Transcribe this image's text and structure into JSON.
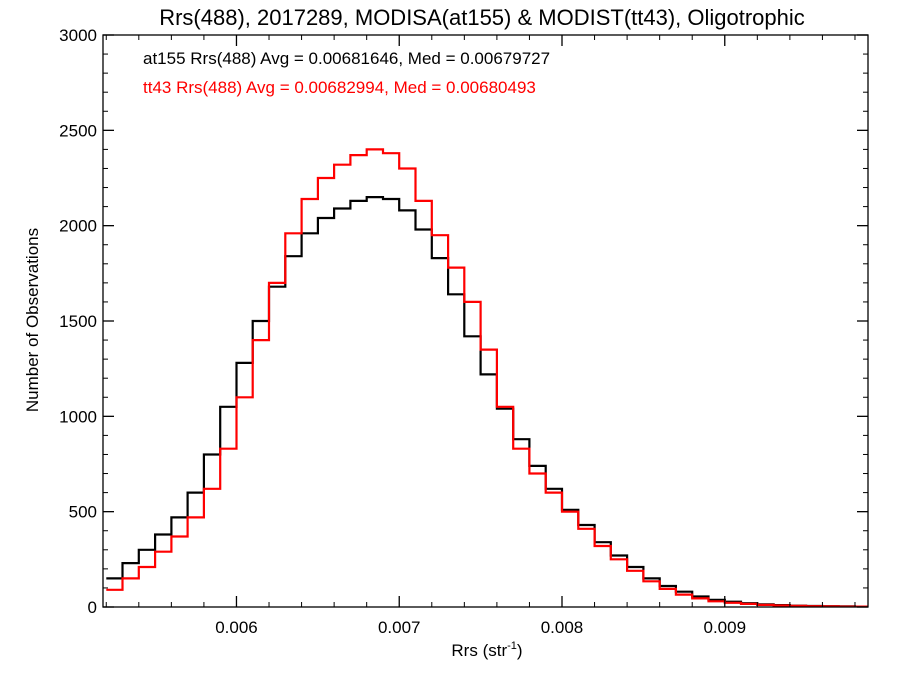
{
  "chart_data": {
    "type": "line",
    "title": "Rrs(488), 2017289, MODISA(at155) & MODIST(tt43), Oligotrophic",
    "xlabel": "Rrs (str",
    "xlabel_sup": "-1",
    "xlabel_close": ")",
    "ylabel": "Number of Observations",
    "xlim": [
      0.00518,
      0.00988
    ],
    "ylim": [
      0,
      3000
    ],
    "x_ticks": [
      0.006,
      0.007,
      0.008,
      0.009
    ],
    "x_tick_labels": [
      "0.006",
      "0.007",
      "0.008",
      "0.009"
    ],
    "y_ticks": [
      0,
      500,
      1000,
      1500,
      2000,
      2500,
      3000
    ],
    "y_tick_labels": [
      "0",
      "500",
      "1000",
      "1500",
      "2000",
      "2500",
      "3000"
    ],
    "grid": false,
    "legend_position": "top-left",
    "series": [
      {
        "name": "at155 Rrs(488) Avg = 0.00681646, Med = 0.00679727",
        "color": "#000000",
        "x": [
          0.0052,
          0.0053,
          0.0054,
          0.0055,
          0.0056,
          0.0057,
          0.0058,
          0.0059,
          0.006,
          0.0061,
          0.0062,
          0.0063,
          0.0064,
          0.0065,
          0.0066,
          0.0067,
          0.0068,
          0.0069,
          0.007,
          0.0071,
          0.0072,
          0.0073,
          0.0074,
          0.0075,
          0.0076,
          0.0077,
          0.0078,
          0.0079,
          0.008,
          0.0081,
          0.0082,
          0.0083,
          0.0084,
          0.0085,
          0.0086,
          0.0087,
          0.0088,
          0.0089,
          0.009,
          0.0091,
          0.0092,
          0.0093,
          0.0094,
          0.0095,
          0.0096,
          0.0097,
          0.0098,
          0.00988
        ],
        "y": [
          150,
          230,
          300,
          380,
          470,
          600,
          800,
          1050,
          1280,
          1500,
          1680,
          1840,
          1960,
          2040,
          2090,
          2130,
          2150,
          2140,
          2080,
          1980,
          1830,
          1640,
          1420,
          1220,
          1040,
          880,
          740,
          620,
          510,
          430,
          340,
          270,
          210,
          150,
          110,
          80,
          55,
          38,
          28,
          20,
          14,
          10,
          7,
          5,
          4,
          3,
          2,
          2
        ]
      },
      {
        "name": "tt43 Rrs(488) Avg = 0.00682994, Med = 0.00680493",
        "color": "#ff0000",
        "x": [
          0.0052,
          0.0053,
          0.0054,
          0.0055,
          0.0056,
          0.0057,
          0.0058,
          0.0059,
          0.006,
          0.0061,
          0.0062,
          0.0063,
          0.0064,
          0.0065,
          0.0066,
          0.0067,
          0.0068,
          0.0069,
          0.007,
          0.0071,
          0.0072,
          0.0073,
          0.0074,
          0.0075,
          0.0076,
          0.0077,
          0.0078,
          0.0079,
          0.008,
          0.0081,
          0.0082,
          0.0083,
          0.0084,
          0.0085,
          0.0086,
          0.0087,
          0.0088,
          0.0089,
          0.009,
          0.0091,
          0.0092,
          0.0093,
          0.0094,
          0.0095,
          0.0096,
          0.0097,
          0.0098,
          0.00988
        ],
        "y": [
          90,
          150,
          210,
          290,
          370,
          470,
          620,
          830,
          1100,
          1400,
          1700,
          1960,
          2140,
          2250,
          2320,
          2370,
          2400,
          2380,
          2300,
          2130,
          1950,
          1780,
          1600,
          1350,
          1050,
          830,
          700,
          600,
          500,
          410,
          320,
          250,
          190,
          135,
          95,
          65,
          45,
          30,
          22,
          16,
          11,
          8,
          6,
          4,
          3,
          2,
          2,
          2
        ]
      }
    ]
  }
}
